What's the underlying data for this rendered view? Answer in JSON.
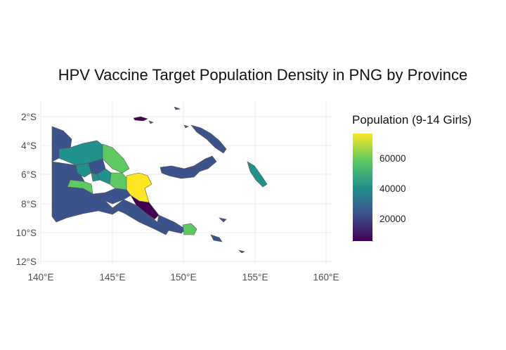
{
  "title": "HPV Vaccine Target Population Density in PNG by Province",
  "legend": {
    "title": "Population (9-14 Girls)",
    "labels": [
      "60000",
      "40000",
      "20000"
    ],
    "colors": [
      "#fde725",
      "#5ec962",
      "#21918c",
      "#3b528b",
      "#440154"
    ]
  },
  "axes": {
    "x_ticks": [
      "140°E",
      "145°E",
      "150°E",
      "155°E",
      "160°E"
    ],
    "y_ticks": [
      "2°S",
      "4°S",
      "6°S",
      "8°S",
      "10°S",
      "12°S"
    ]
  },
  "chart_data": {
    "type": "choropleth",
    "title": "HPV Vaccine Target Population Density in PNG by Province",
    "xlabel": "",
    "ylabel": "",
    "xlim": [
      140,
      160
    ],
    "ylim": [
      -12,
      -1.5
    ],
    "legend_range": [
      5000,
      76000
    ],
    "grid": true,
    "legend_position": "right"
  },
  "colors": {
    "viridis_yellow": "#fde725",
    "viridis_green": "#5ec962",
    "viridis_teal": "#21918c",
    "viridis_blue": "#3b528b",
    "viridis_purple": "#440154",
    "grid": "#ebebeb"
  }
}
